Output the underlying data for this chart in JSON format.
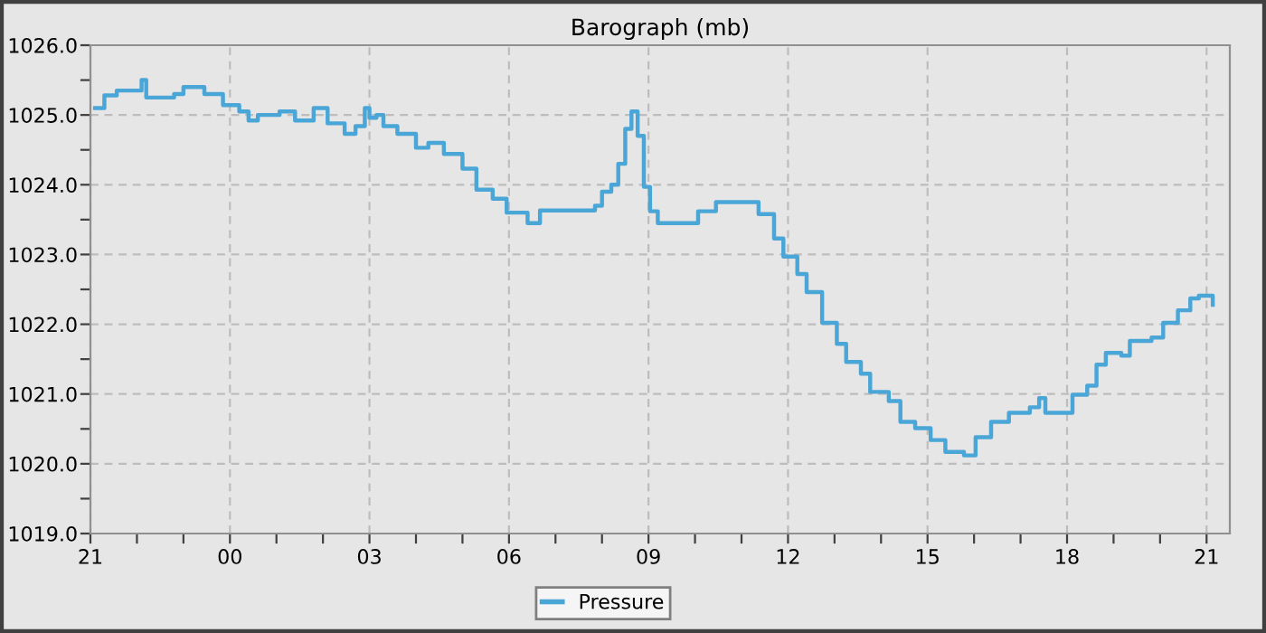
{
  "chart_data": {
    "type": "step",
    "title": "Barograph (mb)",
    "legend": "bottom",
    "grid": true,
    "line_style": "solid",
    "marker": "none",
    "xlim": [
      "2000-01-01T21:00",
      "2000-01-02T21:30"
    ],
    "ylim": [
      1019,
      1026
    ],
    "xticks": [
      {
        "value": "2000-01-01T21:00",
        "label": "21"
      },
      {
        "value": "2000-01-01T22:00",
        "label": null
      },
      {
        "value": "2000-01-01T23:00",
        "label": null
      },
      {
        "value": "2000-01-02T00:00",
        "label": "00"
      },
      {
        "value": "2000-01-02T01:00",
        "label": null
      },
      {
        "value": "2000-01-02T02:00",
        "label": null
      },
      {
        "value": "2000-01-02T03:00",
        "label": "03"
      },
      {
        "value": "2000-01-02T04:00",
        "label": null
      },
      {
        "value": "2000-01-02T05:00",
        "label": null
      },
      {
        "value": "2000-01-02T06:00",
        "label": "06"
      },
      {
        "value": "2000-01-02T07:00",
        "label": null
      },
      {
        "value": "2000-01-02T08:00",
        "label": null
      },
      {
        "value": "2000-01-02T09:00",
        "label": "09"
      },
      {
        "value": "2000-01-02T10:00",
        "label": null
      },
      {
        "value": "2000-01-02T11:00",
        "label": null
      },
      {
        "value": "2000-01-02T12:00",
        "label": "12"
      },
      {
        "value": "2000-01-02T13:00",
        "label": null
      },
      {
        "value": "2000-01-02T14:00",
        "label": null
      },
      {
        "value": "2000-01-02T15:00",
        "label": "15"
      },
      {
        "value": "2000-01-02T16:00",
        "label": null
      },
      {
        "value": "2000-01-02T17:00",
        "label": null
      },
      {
        "value": "2000-01-02T18:00",
        "label": "18"
      },
      {
        "value": "2000-01-02T19:00",
        "label": null
      },
      {
        "value": "2000-01-02T20:00",
        "label": null
      },
      {
        "value": "2000-01-02T21:00",
        "label": "21"
      }
    ],
    "yticks": [
      {
        "value": 1019,
        "label": "1019.0"
      },
      {
        "value": 1019.5,
        "label": null
      },
      {
        "value": 1020,
        "label": "1020.0"
      },
      {
        "value": 1020.5,
        "label": null
      },
      {
        "value": 1021,
        "label": "1021.0"
      },
      {
        "value": 1021.5,
        "label": null
      },
      {
        "value": 1022,
        "label": "1022.0"
      },
      {
        "value": 1022.5,
        "label": null
      },
      {
        "value": 1023,
        "label": "1023.0"
      },
      {
        "value": 1023.5,
        "label": null
      },
      {
        "value": 1024,
        "label": "1024.0"
      },
      {
        "value": 1024.5,
        "label": null
      },
      {
        "value": 1025,
        "label": "1025.0"
      },
      {
        "value": 1025.5,
        "label": null
      },
      {
        "value": 1026,
        "label": "1026.0"
      }
    ],
    "series": [
      {
        "name": "Pressure",
        "color": "#4ba6d8",
        "x": [
          "2000-01-01T21:06",
          "2000-01-01T21:18",
          "2000-01-01T21:34",
          "2000-01-01T22:06",
          "2000-01-01T22:12",
          "2000-01-01T22:48",
          "2000-01-01T23:00",
          "2000-01-01T23:18",
          "2000-01-01T23:27",
          "2000-01-01T23:42",
          "2000-01-01T23:51",
          "2000-01-02T00:12",
          "2000-01-02T00:24",
          "2000-01-02T00:36",
          "2000-01-02T01:04",
          "2000-01-02T01:24",
          "2000-01-02T01:48",
          "2000-01-02T02:06",
          "2000-01-02T02:28",
          "2000-01-02T02:42",
          "2000-01-02T02:54",
          "2000-01-02T03:00",
          "2000-01-02T03:09",
          "2000-01-02T03:18",
          "2000-01-02T03:36",
          "2000-01-02T04:00",
          "2000-01-02T04:16",
          "2000-01-02T04:36",
          "2000-01-02T05:00",
          "2000-01-02T05:18",
          "2000-01-02T05:39",
          "2000-01-02T05:57",
          "2000-01-02T06:24",
          "2000-01-02T06:40",
          "2000-01-02T07:15",
          "2000-01-02T07:51",
          "2000-01-02T08:00",
          "2000-01-02T08:12",
          "2000-01-02T08:21",
          "2000-01-02T08:30",
          "2000-01-02T08:38",
          "2000-01-02T08:46",
          "2000-01-02T08:54",
          "2000-01-02T09:02",
          "2000-01-02T09:12",
          "2000-01-02T09:41",
          "2000-01-02T10:04",
          "2000-01-02T10:27",
          "2000-01-02T10:54",
          "2000-01-02T11:22",
          "2000-01-02T11:42",
          "2000-01-02T11:54",
          "2000-01-02T12:12",
          "2000-01-02T12:24",
          "2000-01-02T12:44",
          "2000-01-02T13:03",
          "2000-01-02T13:15",
          "2000-01-02T13:34",
          "2000-01-02T13:46",
          "2000-01-02T14:10",
          "2000-01-02T14:25",
          "2000-01-02T14:44",
          "2000-01-02T15:04",
          "2000-01-02T15:23",
          "2000-01-02T15:47",
          "2000-01-02T16:02",
          "2000-01-02T16:22",
          "2000-01-02T16:45",
          "2000-01-02T17:12",
          "2000-01-02T17:24",
          "2000-01-02T17:32",
          "2000-01-02T17:52",
          "2000-01-02T18:07",
          "2000-01-02T18:26",
          "2000-01-02T18:38",
          "2000-01-02T18:50",
          "2000-01-02T19:10",
          "2000-01-02T19:21",
          "2000-01-02T19:49",
          "2000-01-02T20:04",
          "2000-01-02T20:23",
          "2000-01-02T20:39",
          "2000-01-02T20:50",
          "2000-01-02T21:02",
          "2000-01-02T21:08"
        ],
        "values": [
          1025.1,
          1025.28,
          1025.35,
          1025.5,
          1025.25,
          1025.3,
          1025.4,
          1025.4,
          1025.3,
          1025.3,
          1025.14,
          1025.05,
          1024.92,
          1025.0,
          1025.05,
          1024.92,
          1025.1,
          1024.88,
          1024.73,
          1024.84,
          1025.1,
          1024.96,
          1025.0,
          1024.84,
          1024.73,
          1024.53,
          1024.6,
          1024.44,
          1024.23,
          1023.93,
          1023.8,
          1023.6,
          1023.45,
          1023.63,
          1023.63,
          1023.7,
          1023.9,
          1024.0,
          1024.3,
          1024.8,
          1025.05,
          1024.7,
          1023.97,
          1023.62,
          1023.45,
          1023.45,
          1023.62,
          1023.75,
          1023.75,
          1023.58,
          1023.23,
          1022.97,
          1022.72,
          1022.46,
          1022.02,
          1021.72,
          1021.46,
          1021.29,
          1021.03,
          1020.9,
          1020.6,
          1020.51,
          1020.34,
          1020.17,
          1020.12,
          1020.38,
          1020.6,
          1020.73,
          1020.81,
          1020.94,
          1020.73,
          1020.73,
          1020.99,
          1021.12,
          1021.42,
          1021.59,
          1021.55,
          1021.76,
          1021.81,
          1022.02,
          1022.2,
          1022.37,
          1022.41,
          1022.41,
          1022.28
        ]
      }
    ]
  }
}
